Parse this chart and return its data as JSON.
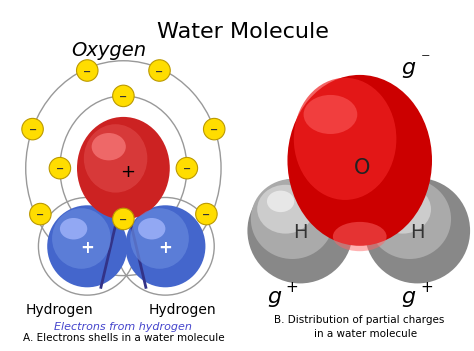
{
  "title": "Water Molecule",
  "title_fontsize": 16,
  "bg_color": "#ffffff",
  "left_panel": {
    "oxygen_label": "Oxygen",
    "hydrogen_labels": [
      "Hydrogen",
      "Hydrogen"
    ],
    "electron_color": "#ffdd00",
    "electron_border": "#bb9900",
    "plus_sign": "+",
    "minus_sign": "−",
    "caption_blue": "Electrons from hydrogen",
    "caption_black": "A. Electrons shells in a water molecule",
    "caption_blue_color": "#4444cc",
    "orbit_color": "#999999",
    "oxy_main_color": "#cc2222",
    "oxy_mid_color": "#dd4444",
    "oxy_hi_color": "#ff8888",
    "h_main_color": "#4466cc",
    "h_mid_color": "#6688dd",
    "h_hi_color": "#aabbff",
    "line_color": "#333388"
  },
  "right_panel": {
    "oxy_color_dark": "#cc0000",
    "oxy_color_mid": "#ee2222",
    "oxy_color_light": "#ff6666",
    "oxy_color_bright": "#ff9999",
    "h_color_dark": "#888888",
    "h_color_mid": "#aaaaaa",
    "h_color_light": "#cccccc",
    "h_color_bright": "#eeeeee",
    "label_O": "O",
    "label_H": "H",
    "partial_neg": "g",
    "partial_pos": "g",
    "caption": "B. Distribution of partial charges\n    in a water molecule"
  }
}
